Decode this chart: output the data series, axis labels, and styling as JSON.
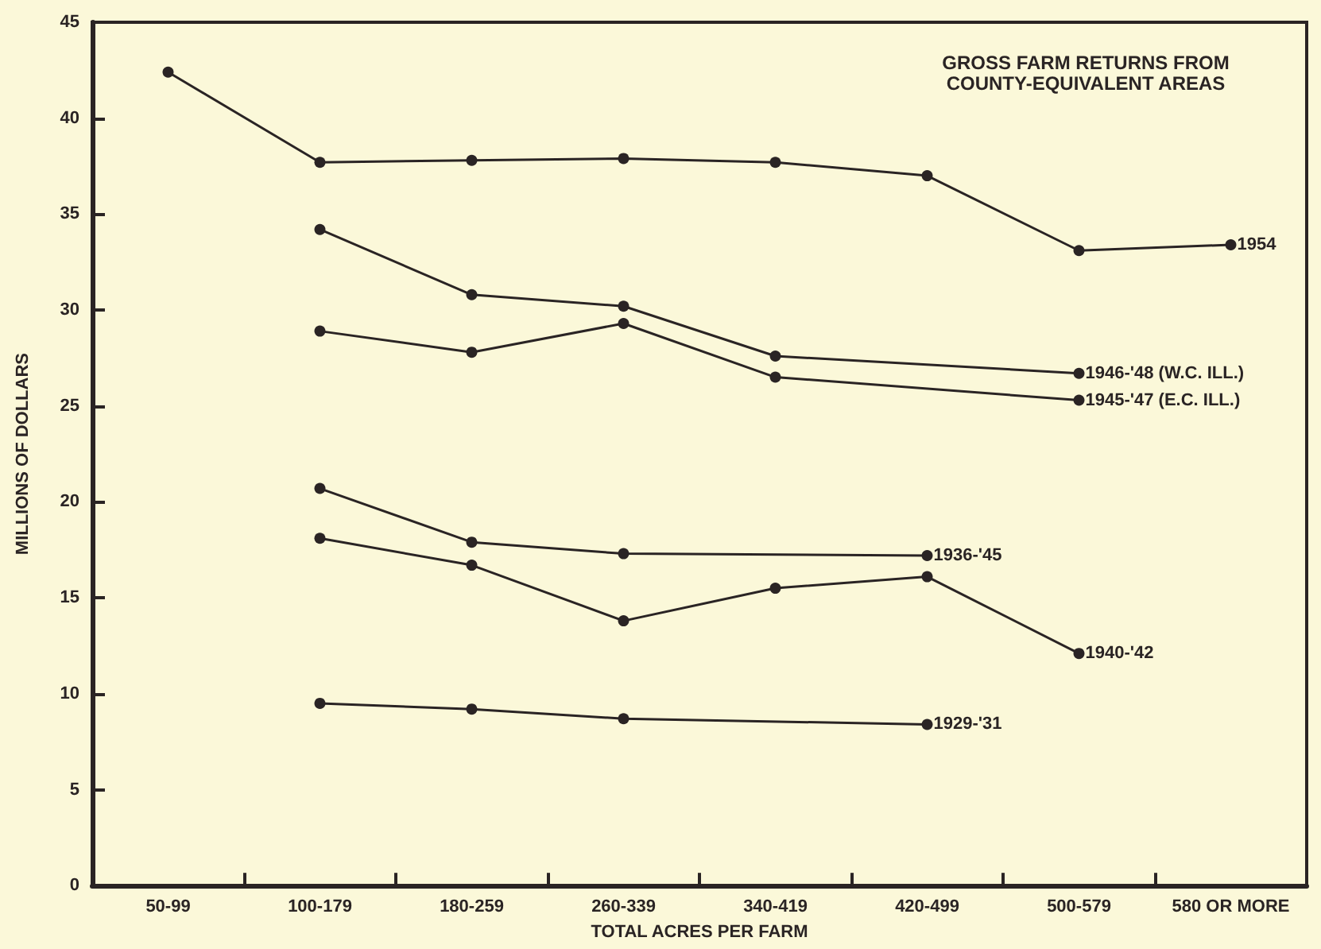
{
  "chart_data": {
    "type": "line",
    "title": "GROSS FARM RETURNS FROM\nCOUNTY-EQUIVALENT AREAS",
    "xlabel": "TOTAL ACRES PER FARM",
    "ylabel": "MILLIONS OF DOLLARS",
    "categories": [
      "50-99",
      "100-179",
      "180-259",
      "260-339",
      "340-419",
      "420-499",
      "500-579",
      "580 OR MORE"
    ],
    "ylim": [
      0,
      45
    ],
    "yticks": [
      0,
      5,
      10,
      15,
      20,
      25,
      30,
      35,
      40,
      45
    ],
    "grid": false,
    "legend": false,
    "marker": "circle",
    "line_style": "solid",
    "series": [
      {
        "name": "1954",
        "color": "#2a2424",
        "x": [
          "50-99",
          "100-179",
          "180-259",
          "260-339",
          "340-419",
          "420-499",
          "500-579",
          "580 OR MORE"
        ],
        "values": [
          42.4,
          37.7,
          37.8,
          37.9,
          37.7,
          37.0,
          33.1,
          33.4
        ]
      },
      {
        "name": "1946-'48 (W.C. ILL.)",
        "color": "#2a2424",
        "x": [
          "100-179",
          "180-259",
          "260-339",
          "340-419",
          "500-579"
        ],
        "values": [
          34.2,
          30.8,
          30.2,
          27.6,
          26.7
        ]
      },
      {
        "name": "1945-'47 (E.C. ILL.)",
        "color": "#2a2424",
        "x": [
          "100-179",
          "180-259",
          "260-339",
          "340-419",
          "500-579"
        ],
        "values": [
          28.9,
          27.8,
          29.3,
          26.5,
          25.3
        ]
      },
      {
        "name": "1936-'45",
        "color": "#2a2424",
        "x": [
          "100-179",
          "180-259",
          "260-339",
          "420-499"
        ],
        "values": [
          20.7,
          17.9,
          17.3,
          17.2
        ]
      },
      {
        "name": "1940-'42",
        "color": "#2a2424",
        "x": [
          "100-179",
          "180-259",
          "260-339",
          "340-419",
          "420-499",
          "500-579"
        ],
        "values": [
          18.1,
          16.7,
          13.8,
          15.5,
          16.1,
          12.1
        ]
      },
      {
        "name": "1929-'31",
        "color": "#2a2424",
        "x": [
          "100-179",
          "180-259",
          "260-339",
          "420-499"
        ],
        "values": [
          9.5,
          9.2,
          8.7,
          8.4
        ]
      }
    ]
  }
}
